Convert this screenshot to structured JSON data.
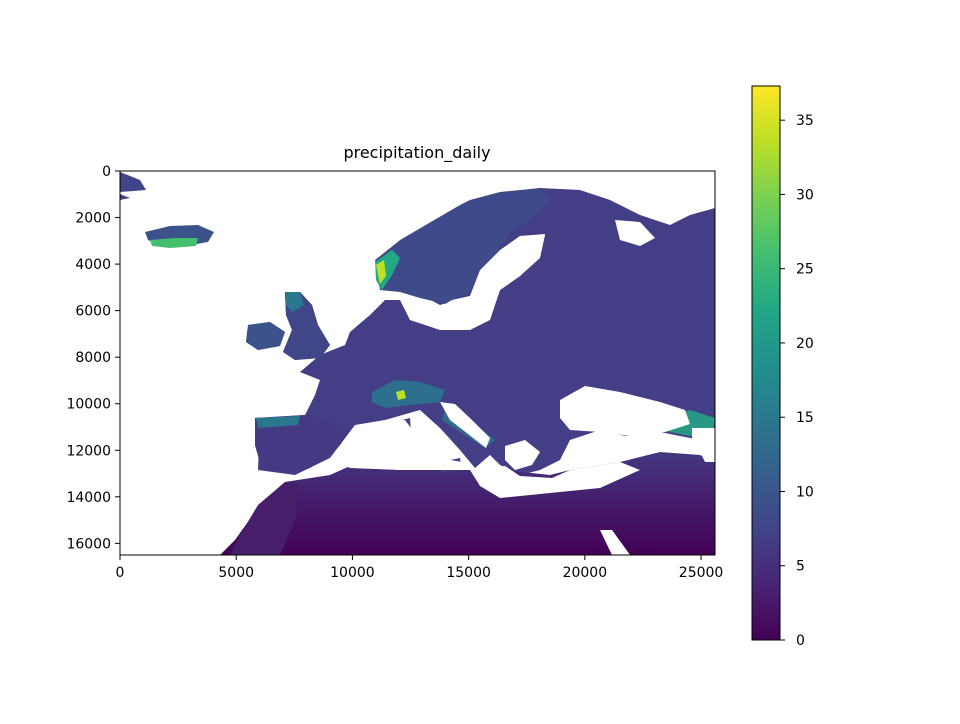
{
  "chart_data": {
    "type": "heatmap",
    "title": "precipitation_daily",
    "xlabel": "",
    "ylabel": "",
    "xlim": [
      0,
      25600
    ],
    "ylim": [
      16500,
      0
    ],
    "xticks": [
      0,
      5000,
      10000,
      15000,
      20000,
      25000
    ],
    "yticks": [
      0,
      2000,
      4000,
      6000,
      8000,
      10000,
      12000,
      14000,
      16000
    ],
    "colorbar": {
      "colormap": "viridis",
      "range": [
        0,
        37.3
      ],
      "ticks": [
        0,
        5,
        10,
        15,
        20,
        25,
        30,
        35
      ]
    },
    "colors": {
      "no_data": "#ffffff",
      "viridis_stops": [
        "#440154",
        "#482475",
        "#414487",
        "#355f8d",
        "#2a788e",
        "#21918c",
        "#22a884",
        "#44bf70",
        "#7ad151",
        "#bddf26",
        "#fde725"
      ]
    },
    "grid": false
  }
}
